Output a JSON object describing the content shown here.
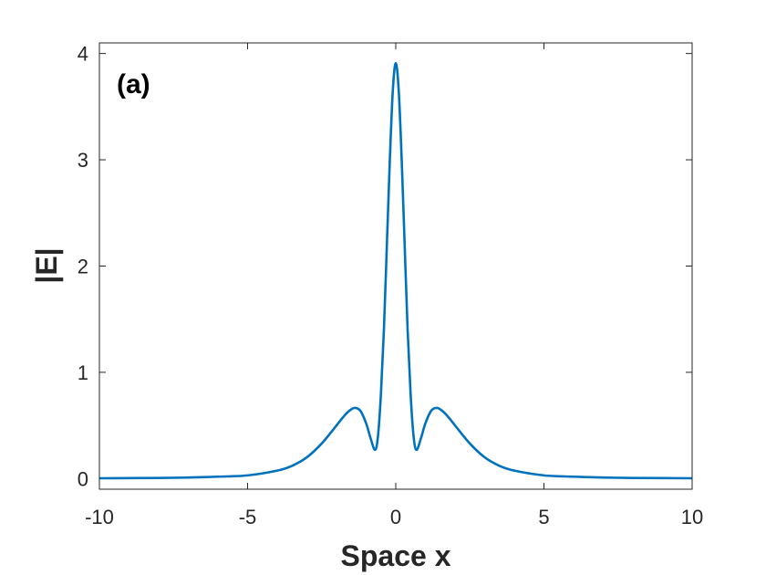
{
  "chart_data": {
    "type": "line",
    "panel_label": "(a)",
    "xlabel": "Space x",
    "ylabel": "|E|",
    "xlim": [
      -10,
      10
    ],
    "ylim": [
      -0.1,
      4.1
    ],
    "xticks": [
      -10,
      -5,
      0,
      5,
      10
    ],
    "yticks": [
      0,
      1,
      2,
      3,
      4
    ],
    "xtick_labels": [
      "-10",
      "-5",
      "0",
      "5",
      "10"
    ],
    "ytick_labels": [
      "0",
      "1",
      "2",
      "3",
      "4"
    ],
    "grid": false,
    "line_color": "#0072BD",
    "series": [
      {
        "x": [
          -10,
          -8,
          -7,
          -6,
          -5,
          -4,
          -3.5,
          -3,
          -2.5,
          -2,
          -1.8,
          -1.6,
          -1.4,
          -1.2,
          -1.0,
          -0.85,
          -0.7,
          -0.6,
          -0.5,
          -0.4,
          -0.3,
          -0.2,
          -0.1,
          0,
          0.1,
          0.2,
          0.3,
          0.4,
          0.5,
          0.6,
          0.7,
          0.85,
          1.0,
          1.2,
          1.4,
          1.6,
          1.8,
          2,
          2.5,
          3,
          3.5,
          4,
          5,
          6,
          7,
          8,
          10
        ],
        "values": [
          0.003,
          0.006,
          0.01,
          0.018,
          0.03,
          0.075,
          0.12,
          0.2,
          0.33,
          0.5,
          0.57,
          0.63,
          0.665,
          0.64,
          0.52,
          0.38,
          0.27,
          0.4,
          0.8,
          1.4,
          2.2,
          3.0,
          3.65,
          3.91,
          3.65,
          3.0,
          2.2,
          1.4,
          0.8,
          0.4,
          0.27,
          0.38,
          0.52,
          0.64,
          0.665,
          0.63,
          0.57,
          0.5,
          0.33,
          0.2,
          0.12,
          0.075,
          0.03,
          0.018,
          0.01,
          0.006,
          0.003
        ]
      }
    ]
  }
}
